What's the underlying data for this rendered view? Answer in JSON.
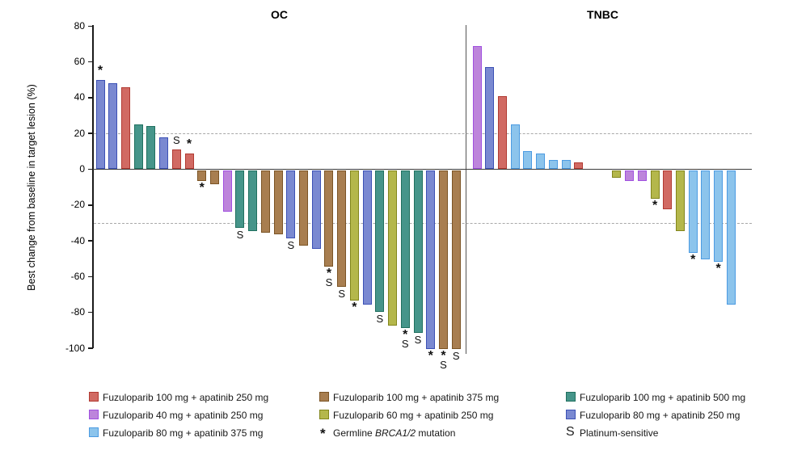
{
  "chart_data": {
    "type": "bar",
    "subtype": "waterfall",
    "ylabel": "Best change from baseline in target lesion (%)",
    "ylim": [
      -100,
      80
    ],
    "yticks": [
      80,
      60,
      40,
      20,
      0,
      -20,
      -40,
      -60,
      -80,
      -100
    ],
    "reference_lines": [
      20,
      -30
    ],
    "grid": "dashed horizontal reference lines at +20 and -30",
    "legend_position": "bottom",
    "arms": {
      "red": {
        "label": "Fuzuloparib 100 mg + apatinib 250 mg",
        "fill": "#D16A63",
        "stroke": "#B13A32"
      },
      "brown": {
        "label": "Fuzuloparib 100 mg + apatinib 375 mg",
        "fill": "#A87E50",
        "stroke": "#7B5425"
      },
      "teal": {
        "label": "Fuzuloparib 100 mg + apatinib 500 mg",
        "fill": "#46958A",
        "stroke": "#20705F"
      },
      "orchid": {
        "label": "Fuzuloparib 40 mg + apatinib 250 mg",
        "fill": "#BD85DB",
        "stroke": "#A050E0"
      },
      "yellow": {
        "label": "Fuzuloparib 60 mg + apatinib 250 mg",
        "fill": "#B4B74B",
        "stroke": "#82861C"
      },
      "blue": {
        "label": "Fuzuloparib 80 mg + apatinib 250 mg",
        "fill": "#7A89D1",
        "stroke": "#3C51B5"
      },
      "lightblue": {
        "label": "Fuzuloparib 80 mg + apatinib 375 mg",
        "fill": "#8CC4EC",
        "stroke": "#4C9BE2"
      }
    },
    "flag_meanings": {
      "*": "Germline BRCA1/2 mutation",
      "S": "Platinum-sensitive"
    },
    "groups": [
      {
        "name": "OC",
        "bars": [
          {
            "v": 50,
            "arm": "blue",
            "flags": "*"
          },
          {
            "v": 48,
            "arm": "blue"
          },
          {
            "v": 46,
            "arm": "red"
          },
          {
            "v": 25,
            "arm": "teal"
          },
          {
            "v": 24,
            "arm": "teal"
          },
          {
            "v": 18,
            "arm": "blue"
          },
          {
            "v": 11,
            "arm": "red",
            "flags": "S"
          },
          {
            "v": 9,
            "arm": "red",
            "flags": "*"
          },
          {
            "v": -6,
            "arm": "brown",
            "flags": "*"
          },
          {
            "v": -8,
            "arm": "brown"
          },
          {
            "v": -23,
            "arm": "orchid"
          },
          {
            "v": -32,
            "arm": "teal",
            "flags": "S"
          },
          {
            "v": -34,
            "arm": "teal"
          },
          {
            "v": -35,
            "arm": "brown"
          },
          {
            "v": -36,
            "arm": "brown"
          },
          {
            "v": -38,
            "arm": "blue",
            "flags": "S"
          },
          {
            "v": -42,
            "arm": "brown"
          },
          {
            "v": -44,
            "arm": "blue"
          },
          {
            "v": -54,
            "arm": "brown",
            "flags": "*S"
          },
          {
            "v": -65,
            "arm": "brown",
            "flags": "S"
          },
          {
            "v": -73,
            "arm": "yellow",
            "flags": "*"
          },
          {
            "v": -75,
            "arm": "blue"
          },
          {
            "v": -79,
            "arm": "teal",
            "flags": "S"
          },
          {
            "v": -87,
            "arm": "yellow"
          },
          {
            "v": -88,
            "arm": "teal",
            "flags": "*S"
          },
          {
            "v": -91,
            "arm": "teal",
            "flags": "S"
          },
          {
            "v": -100,
            "arm": "blue",
            "flags": "*"
          },
          {
            "v": -100,
            "arm": "brown",
            "flags": "*S"
          },
          {
            "v": -100,
            "arm": "brown",
            "flags": "S"
          }
        ]
      },
      {
        "name": "TNBC",
        "bars": [
          {
            "v": 69,
            "arm": "orchid"
          },
          {
            "v": 57,
            "arm": "blue"
          },
          {
            "v": 41,
            "arm": "red"
          },
          {
            "v": 25,
            "arm": "lightblue"
          },
          {
            "v": 10,
            "arm": "lightblue"
          },
          {
            "v": 9,
            "arm": "lightblue"
          },
          {
            "v": 5,
            "arm": "lightblue"
          },
          {
            "v": 5,
            "arm": "lightblue"
          },
          {
            "v": 4,
            "arm": "red"
          },
          {
            "v": 0,
            "arm": null
          },
          {
            "v": 0,
            "arm": null
          },
          {
            "v": -4,
            "arm": "yellow"
          },
          {
            "v": -6,
            "arm": "orchid"
          },
          {
            "v": -6,
            "arm": "orchid"
          },
          {
            "v": -16,
            "arm": "yellow",
            "flags": "*"
          },
          {
            "v": -22,
            "arm": "red"
          },
          {
            "v": -34,
            "arm": "yellow"
          },
          {
            "v": -46,
            "arm": "lightblue",
            "flags": "*"
          },
          {
            "v": -50,
            "arm": "lightblue"
          },
          {
            "v": -51,
            "arm": "lightblue",
            "flags": "*"
          },
          {
            "v": -75,
            "arm": "lightblue"
          }
        ]
      }
    ]
  },
  "legend": {
    "columns": [
      [
        {
          "arm": "red"
        },
        {
          "arm": "orchid"
        },
        {
          "arm": "lightblue"
        }
      ],
      [
        {
          "arm": "brown"
        },
        {
          "arm": "yellow"
        },
        {
          "symbol": "*",
          "parts": [
            {
              "t": "Germline "
            },
            {
              "t": "BRCA1/2",
              "i": true
            },
            {
              "t": " mutation"
            }
          ]
        }
      ],
      [
        {
          "arm": "teal"
        },
        {
          "arm": "blue"
        },
        {
          "symbol": "S",
          "parts": [
            {
              "t": "Platinum-sensitive"
            }
          ]
        }
      ]
    ]
  }
}
